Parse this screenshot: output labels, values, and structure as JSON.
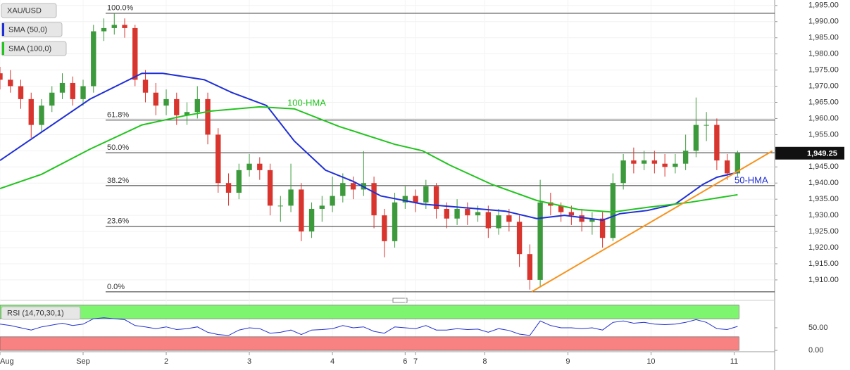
{
  "chart_data": [
    {
      "type": "candlestick",
      "xlim": [
        0,
        223.7
      ],
      "ylim": [
        1904.1,
        1996.7
      ],
      "grid": true,
      "xticks": [
        {
          "value": 0,
          "label": "Aug"
        },
        {
          "value": 24,
          "label": "Sep"
        },
        {
          "value": 48,
          "label": "2"
        },
        {
          "value": 72,
          "label": "3"
        },
        {
          "value": 96,
          "label": "4"
        },
        {
          "value": 117,
          "label": "6"
        },
        {
          "value": 120,
          "label": "7"
        },
        {
          "value": 140,
          "label": "8"
        },
        {
          "value": 164,
          "label": "9"
        },
        {
          "value": 188,
          "label": "10"
        },
        {
          "value": 212,
          "label": "11"
        }
      ],
      "yticks": [
        {
          "value": 1910,
          "label": "1,910.00"
        },
        {
          "value": 1915,
          "label": "1,915.00"
        },
        {
          "value": 1920,
          "label": "1,920.00"
        },
        {
          "value": 1925,
          "label": "1,925.00"
        },
        {
          "value": 1930,
          "label": "1,930.00"
        },
        {
          "value": 1935,
          "label": "1,935.00"
        },
        {
          "value": 1940,
          "label": "1,940.00"
        },
        {
          "value": 1945,
          "label": "1,945.00"
        },
        {
          "value": 1950,
          "label": "1,950.00"
        },
        {
          "value": 1955,
          "label": "1,955.00"
        },
        {
          "value": 1960,
          "label": "1,960.00"
        },
        {
          "value": 1965,
          "label": "1,965.00"
        },
        {
          "value": 1970,
          "label": "1,970.00"
        },
        {
          "value": 1975,
          "label": "1,975.00"
        },
        {
          "value": 1980,
          "label": "1,980.00"
        },
        {
          "value": 1985,
          "label": "1,985.00"
        },
        {
          "value": 1990,
          "label": "1,990.00"
        },
        {
          "value": 1995,
          "label": "1,995.00"
        }
      ],
      "up_color": "#3c9a3c",
      "down_color": "#d9352f",
      "series": [
        {
          "name": "XAU/USD",
          "x": [
            0,
            3,
            6,
            9,
            12,
            15,
            18,
            21,
            24,
            27,
            30,
            33,
            36,
            39,
            42,
            45,
            48,
            51,
            54,
            57,
            60,
            63,
            66,
            69,
            72,
            75,
            78,
            81,
            84,
            87,
            90,
            93,
            96,
            99,
            102,
            105,
            108,
            111,
            114,
            117,
            120,
            123,
            126,
            129,
            132,
            135,
            138,
            141,
            144,
            147,
            150,
            153,
            156,
            159,
            162,
            165,
            168,
            171,
            174,
            177,
            180,
            183,
            186,
            189,
            192,
            195,
            198,
            201,
            204,
            207,
            210,
            213
          ],
          "open": [
            1974,
            1972,
            1970,
            1966,
            1958,
            1964,
            1968,
            1971,
            1966,
            1970,
            1987,
            1988,
            1989,
            1988,
            1972,
            1968,
            1964,
            1966,
            1961,
            1962,
            1966,
            1955,
            1940,
            1937,
            1944,
            1946,
            1944,
            1933,
            1933,
            1938,
            1925,
            1932,
            1933,
            1936,
            1940,
            1938,
            1940,
            1930,
            1922,
            1934,
            1936,
            1934,
            1939,
            1932,
            1929,
            1932,
            1930,
            1931,
            1926,
            1930,
            1928,
            1918,
            1910,
            1934,
            1933,
            1931,
            1930,
            1928,
            1929,
            1923,
            1940,
            1947,
            1946,
            1947,
            1946,
            1945,
            1946,
            1950,
            1958,
            1958,
            1947,
            1943
          ],
          "high": [
            1976,
            1975,
            1972,
            1968,
            1966,
            1970,
            1974,
            1973,
            1972,
            1989,
            1991,
            1992.6,
            1991,
            1989,
            1975,
            1971,
            1969,
            1968,
            1965,
            1970,
            1968,
            1957,
            1943,
            1946,
            1949,
            1948,
            1946,
            1936,
            1946,
            1940,
            1934,
            1936,
            1942,
            1943,
            1942,
            1949.9,
            1942,
            1932,
            1937,
            1939,
            1938,
            1941,
            1940,
            1934,
            1935,
            1934,
            1933,
            1933,
            1932,
            1932,
            1930,
            1921,
            1941,
            1937,
            1934,
            1933,
            1932,
            1931,
            1931,
            1943,
            1949,
            1951,
            1950,
            1950,
            1949,
            1949,
            1955,
            1966.5,
            1962,
            1960,
            1949,
            1950
          ],
          "low": [
            1969,
            1968,
            1963,
            1954,
            1956,
            1962,
            1966,
            1964,
            1964,
            1968,
            1984,
            1986,
            1985,
            1970,
            1965,
            1961,
            1961,
            1958,
            1958,
            1960,
            1952,
            1937,
            1933,
            1935,
            1942,
            1941,
            1930,
            1928,
            1931,
            1922,
            1923,
            1928,
            1931,
            1934,
            1935,
            1936,
            1926,
            1917,
            1920,
            1932,
            1931,
            1932,
            1929,
            1926,
            1927,
            1927,
            1928,
            1923,
            1924,
            1925,
            1914,
            1907,
            1908,
            1930,
            1928,
            1927,
            1925,
            1924,
            1920,
            1922,
            1938,
            1943,
            1944,
            1943,
            1942,
            1943,
            1944,
            1948,
            1953,
            1944,
            1941,
            1942
          ],
          "close": [
            1972,
            1970,
            1966,
            1958,
            1964,
            1968,
            1971,
            1966,
            1970,
            1987,
            1988,
            1989,
            1988,
            1972,
            1968,
            1964,
            1966,
            1961,
            1962,
            1966,
            1955,
            1940,
            1937,
            1944,
            1946,
            1944,
            1933,
            1933,
            1938,
            1925,
            1932,
            1933,
            1936,
            1940,
            1938,
            1940,
            1930,
            1922,
            1934,
            1936,
            1934,
            1939,
            1932,
            1929,
            1932,
            1930,
            1931,
            1926,
            1930,
            1928,
            1918,
            1910,
            1934,
            1933,
            1931,
            1930,
            1928,
            1929,
            1923,
            1940,
            1947,
            1946,
            1947,
            1946,
            1945,
            1946,
            1950,
            1958,
            1958,
            1947,
            1943,
            1949.25
          ]
        },
        {
          "name": "SMA (50,0)",
          "color": "#1f2fd6",
          "x": [
            0,
            26,
            41,
            47,
            59,
            67,
            77,
            85,
            94,
            102,
            110,
            122,
            138,
            146,
            155,
            163,
            174,
            179,
            187,
            195,
            203,
            207,
            213
          ],
          "values": [
            1947,
            1966,
            1974,
            1974,
            1972,
            1968,
            1964,
            1953,
            1944,
            1940.5,
            1936,
            1933.5,
            1932,
            1931.3,
            1929,
            1930,
            1928.5,
            1930.5,
            1931.5,
            1933.5,
            1939.6,
            1941.8,
            1943.3
          ]
        },
        {
          "name": "SMA (100,0)",
          "color": "#22c41e",
          "x": [
            0,
            12,
            26,
            41,
            53,
            61,
            75,
            85,
            98,
            114,
            122,
            130,
            142,
            155,
            167,
            177,
            187,
            199,
            213
          ],
          "values": [
            1938.3,
            1942.7,
            1950.5,
            1958,
            1960.8,
            1962.3,
            1963.6,
            1963,
            1957.5,
            1952,
            1950,
            1945.5,
            1939.6,
            1934.6,
            1931.8,
            1931,
            1932.5,
            1934,
            1936.4
          ]
        }
      ],
      "levels": [
        {
          "label": "100.0%",
          "value": 1992.6
        },
        {
          "label": "61.8%",
          "value": 1959.5
        },
        {
          "label": "50.0%",
          "value": 1949.4
        },
        {
          "label": "38.2%",
          "value": 1939.2
        },
        {
          "label": "23.6%",
          "value": 1926.6
        },
        {
          "label": "0.0%",
          "value": 1906.3
        }
      ],
      "trendline": {
        "x": [
          153.5,
          223
        ],
        "values": [
          1906.3,
          1949.9
        ],
        "color": "#f7931e"
      },
      "annotations": [
        "100-HMA",
        "50-HMA"
      ],
      "current_price": {
        "value": 1949.25,
        "label": "1,949.25"
      }
    },
    {
      "type": "line",
      "ylim": [
        -3,
        106
      ],
      "yticks": [
        {
          "value": 50,
          "label": "50.00"
        },
        {
          "value": 0,
          "label": "0.00"
        }
      ],
      "bands": [
        {
          "from": 70,
          "to": 100,
          "color": "#7df56f"
        },
        {
          "from": 0,
          "to": 30,
          "color": "#f88181"
        }
      ],
      "series": [
        {
          "name": "RSI (14,70,30,1)",
          "color": "#2230d0",
          "x": [
            0,
            3,
            6,
            9,
            12,
            15,
            18,
            21,
            24,
            27,
            30,
            33,
            36,
            39,
            42,
            45,
            48,
            51,
            54,
            57,
            60,
            63,
            66,
            69,
            72,
            75,
            78,
            81,
            84,
            87,
            90,
            93,
            96,
            99,
            102,
            105,
            108,
            111,
            114,
            117,
            120,
            123,
            126,
            129,
            132,
            135,
            138,
            141,
            144,
            147,
            150,
            153,
            156,
            159,
            162,
            165,
            168,
            171,
            174,
            177,
            180,
            183,
            186,
            189,
            192,
            195,
            198,
            201,
            204,
            207,
            210,
            213
          ],
          "values": [
            58,
            55,
            50,
            45,
            52,
            56,
            60,
            55,
            58,
            70,
            72,
            70,
            68,
            55,
            52,
            48,
            52,
            46,
            48,
            52,
            40,
            35,
            33,
            45,
            50,
            48,
            38,
            40,
            45,
            35,
            45,
            46,
            48,
            55,
            50,
            52,
            42,
            38,
            52,
            50,
            48,
            55,
            45,
            45,
            48,
            46,
            47,
            40,
            48,
            44,
            36,
            33,
            65,
            55,
            50,
            50,
            48,
            50,
            45,
            62,
            65,
            60,
            62,
            58,
            57,
            58,
            62,
            68,
            62,
            48,
            46,
            53
          ]
        }
      ]
    }
  ]
}
